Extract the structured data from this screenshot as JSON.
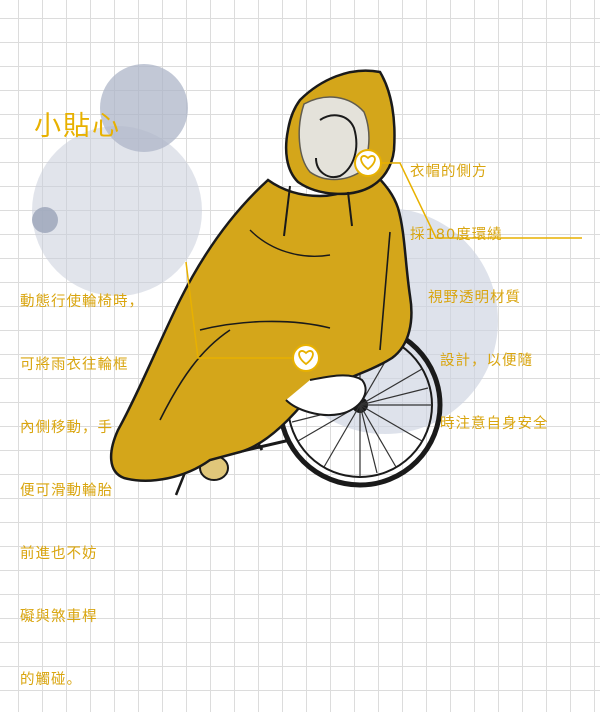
{
  "title": "小貼心",
  "tips": {
    "hood": [
      "衣帽的側方",
      "採180度環繞",
      "視野透明材質",
      "設計，以便隨",
      "時注意自身安全"
    ],
    "wheel": [
      "動態行使輪椅時，",
      "可將雨衣往輪框",
      "內側移動，手",
      "便可滑動輪胎",
      "前進也不妨",
      "礙與煞車桿",
      "的觸碰。"
    ]
  },
  "colors": {
    "accent": "#e8b100",
    "raincoat": "#d4a61a",
    "text": "#d9a50f",
    "bubble": "#c8cedb"
  }
}
